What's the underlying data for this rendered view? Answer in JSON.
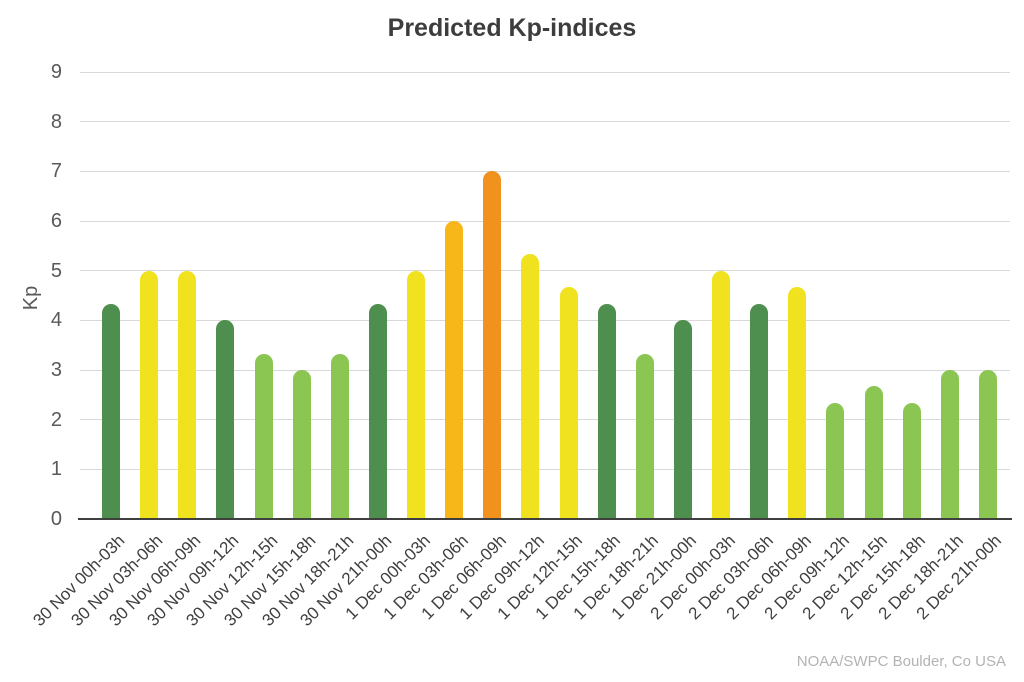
{
  "chart_data": {
    "type": "bar",
    "title": "Predicted Kp-indices",
    "ylabel": "Kp",
    "xlabel": "",
    "source": "NOAA/SWPC Boulder, Co USA",
    "ylim": [
      0,
      9
    ],
    "yticks": [
      0,
      1,
      2,
      3,
      4,
      5,
      6,
      7,
      8,
      9
    ],
    "grid": true,
    "legend": false,
    "categories": [
      "30 Nov 00h-03h",
      "30 Nov 03h-06h",
      "30 Nov 06h-09h",
      "30 Nov 09h-12h",
      "30 Nov 12h-15h",
      "30 Nov 15h-18h",
      "30 Nov 18h-21h",
      "30 Nov 21h-00h",
      "1 Dec 00h-03h",
      "1 Dec 03h-06h",
      "1 Dec 06h-09h",
      "1 Dec 09h-12h",
      "1 Dec 12h-15h",
      "1 Dec 15h-18h",
      "1 Dec 18h-21h",
      "1 Dec 21h-00h",
      "2 Dec 00h-03h",
      "2 Dec 03h-06h",
      "2 Dec 06h-09h",
      "2 Dec 09h-12h",
      "2 Dec 12h-15h",
      "2 Dec 15h-18h",
      "2 Dec 18h-21h",
      "2 Dec 21h-00h"
    ],
    "values": [
      4.33,
      5,
      5,
      4,
      3.33,
      3,
      3.33,
      4.33,
      5,
      6,
      7,
      5.33,
      4.67,
      4.33,
      3.33,
      4,
      5,
      4.33,
      4.67,
      2.33,
      2.67,
      2.33,
      3,
      3
    ],
    "levels": [
      "active",
      "minor",
      "minor",
      "active",
      "quiet",
      "quiet",
      "quiet",
      "active",
      "minor",
      "moderate",
      "strong",
      "minor",
      "minor",
      "active",
      "quiet",
      "active",
      "minor",
      "active",
      "minor",
      "quiet",
      "quiet",
      "quiet",
      "quiet",
      "quiet"
    ],
    "colors": {
      "quiet": "#8BC653",
      "active": "#4E8E4E",
      "minor": "#F0E21E",
      "moderate": "#F7B718",
      "strong": "#F2921E"
    }
  }
}
